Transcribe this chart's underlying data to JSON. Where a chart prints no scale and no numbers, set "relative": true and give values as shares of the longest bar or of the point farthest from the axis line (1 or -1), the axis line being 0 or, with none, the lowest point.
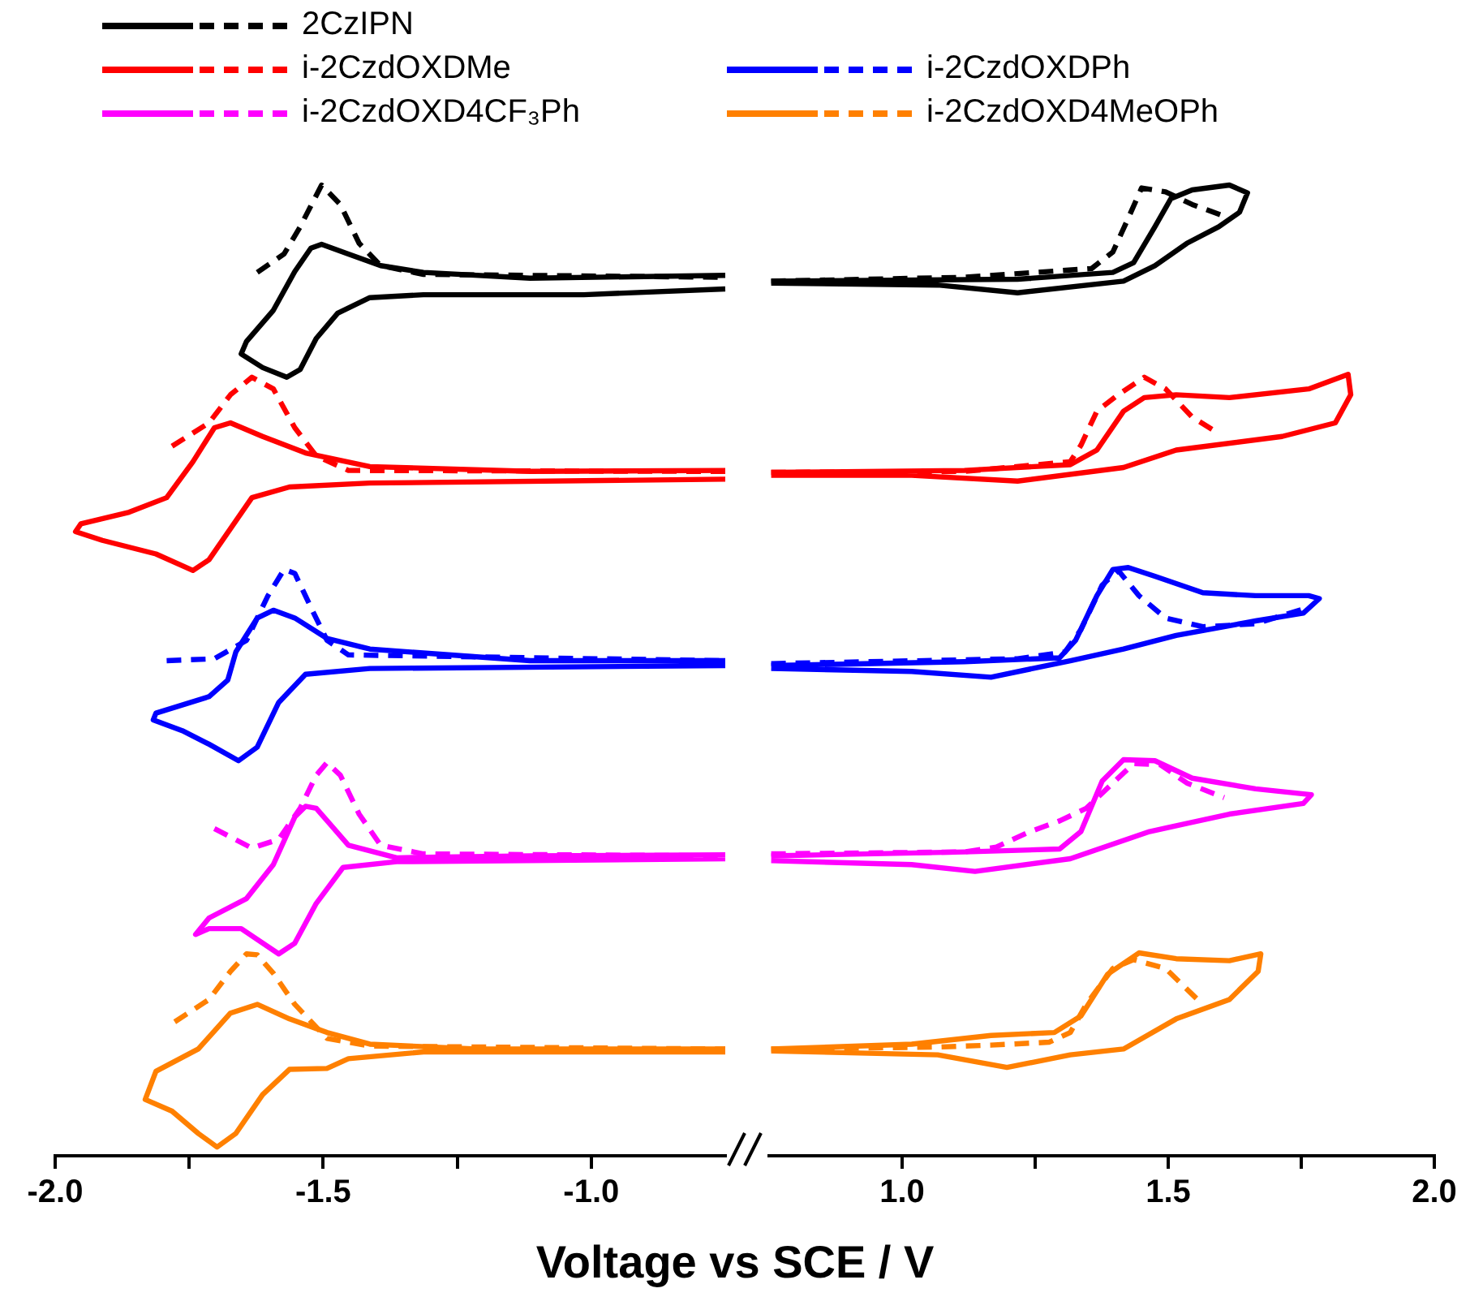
{
  "chart_data": [
    {
      "type": "line",
      "relative": true,
      "marker": "none",
      "legend": "top",
      "tick_labels": "x",
      "xlabel": "Voltage vs SCE / V",
      "xlim": [
        -2.0,
        -0.75
      ],
      "xticks": [
        {
          "value": -2,
          "label": "-2.0"
        },
        {
          "value": -1.75,
          "label": null
        },
        {
          "value": -1.5,
          "label": "-1.5"
        },
        {
          "value": -1.25,
          "label": null
        },
        {
          "value": -1,
          "label": "-1.0"
        }
      ],
      "series": [
        {
          "color": "#000000",
          "line_style": "solid",
          "x": [
            -0.75,
            -1.114,
            -1.313,
            -1.393,
            -1.453,
            -1.503,
            -1.523,
            -1.553,
            -1.593,
            -1.643,
            -1.653,
            -1.613,
            -1.568,
            -1.543,
            -1.513,
            -1.473,
            -1.413,
            -1.313,
            -1.014,
            -0.75
          ],
          "values": [
            0.907,
            0.904,
            0.91,
            0.917,
            0.929,
            0.939,
            0.935,
            0.911,
            0.871,
            0.839,
            0.826,
            0.812,
            0.802,
            0.81,
            0.842,
            0.868,
            0.884,
            0.887,
            0.887,
            0.893
          ]
        },
        {
          "name": "2CzIPN",
          "color": "#000000",
          "line_style": "dashed",
          "x": [
            -1.623,
            -1.573,
            -1.543,
            -1.503,
            -1.468,
            -1.433,
            -1.393,
            -1.313,
            -0.75
          ],
          "values": [
            0.91,
            0.929,
            0.957,
            1.0,
            0.98,
            0.94,
            0.917,
            0.908,
            0.905
          ]
        },
        {
          "color": "#ff0000",
          "line_style": "solid",
          "x": [
            -0.75,
            -1.114,
            -1.413,
            -1.533,
            -1.613,
            -1.673,
            -1.703,
            -1.743,
            -1.792,
            -1.862,
            -1.952,
            -1.962,
            -1.912,
            -1.812,
            -1.743,
            -1.713,
            -1.673,
            -1.633,
            -1.563,
            -1.413,
            -0.75
          ],
          "values": [
            0.706,
            0.705,
            0.71,
            0.724,
            0.741,
            0.755,
            0.75,
            0.715,
            0.678,
            0.663,
            0.651,
            0.643,
            0.634,
            0.62,
            0.603,
            0.614,
            0.646,
            0.678,
            0.689,
            0.693,
            0.697
          ]
        },
        {
          "name": "i-2CzdOXDMe",
          "color": "#ff0000",
          "line_style": "dashed",
          "x": [
            -1.782,
            -1.713,
            -1.673,
            -1.633,
            -1.593,
            -1.553,
            -1.513,
            -1.453,
            -0.75
          ],
          "values": [
            0.731,
            0.755,
            0.784,
            0.802,
            0.79,
            0.75,
            0.721,
            0.706,
            0.705
          ]
        },
        {
          "color": "#0000ff",
          "line_style": "solid",
          "x": [
            -0.75,
            -1.114,
            -1.413,
            -1.493,
            -1.553,
            -1.593,
            -1.623,
            -1.663,
            -1.678,
            -1.713,
            -1.812,
            -1.817,
            -1.763,
            -1.713,
            -1.658,
            -1.623,
            -1.583,
            -1.533,
            -1.413,
            -0.75
          ],
          "values": [
            0.51,
            0.51,
            0.522,
            0.533,
            0.554,
            0.562,
            0.554,
            0.519,
            0.49,
            0.473,
            0.456,
            0.449,
            0.438,
            0.424,
            0.407,
            0.421,
            0.467,
            0.496,
            0.502,
            0.505
          ]
        },
        {
          "name": "i-2CzdOXDPh",
          "color": "#0000ff",
          "line_style": "dashed",
          "x": [
            -1.792,
            -1.703,
            -1.643,
            -1.603,
            -1.573,
            -1.553,
            -1.523,
            -1.493,
            -1.453,
            -0.75
          ],
          "values": [
            0.51,
            0.512,
            0.531,
            0.577,
            0.604,
            0.6,
            0.565,
            0.531,
            0.516,
            0.51
          ]
        },
        {
          "color": "#ff00ff",
          "line_style": "solid",
          "x": [
            -0.75,
            -1.114,
            -1.363,
            -1.453,
            -1.513,
            -1.533,
            -1.553,
            -1.593,
            -1.643,
            -1.713,
            -1.738,
            -1.713,
            -1.653,
            -1.583,
            -1.553,
            -1.513,
            -1.463,
            -1.363,
            -0.75
          ],
          "values": [
            0.31,
            0.309,
            0.307,
            0.32,
            0.358,
            0.36,
            0.349,
            0.3,
            0.265,
            0.245,
            0.228,
            0.234,
            0.234,
            0.208,
            0.219,
            0.26,
            0.297,
            0.303,
            0.306
          ]
        },
        {
          "name": "i-2CzdOXD4CF₃Ph",
          "color": "#ff00ff",
          "line_style": "dashed",
          "x": [
            -1.703,
            -1.633,
            -1.583,
            -1.543,
            -1.513,
            -1.493,
            -1.468,
            -1.433,
            -1.393,
            -1.313,
            -0.75
          ],
          "values": [
            0.337,
            0.317,
            0.326,
            0.358,
            0.392,
            0.405,
            0.392,
            0.352,
            0.32,
            0.311,
            0.309
          ]
        },
        {
          "color": "#ff8000",
          "line_style": "solid",
          "x": [
            -0.75,
            -1.214,
            -1.413,
            -1.493,
            -1.563,
            -1.623,
            -1.673,
            -1.733,
            -1.812,
            -1.832,
            -1.782,
            -1.733,
            -1.698,
            -1.663,
            -1.613,
            -1.563,
            -1.493,
            -1.453,
            -1.313,
            -0.75
          ],
          "values": [
            0.11,
            0.11,
            0.115,
            0.127,
            0.141,
            0.156,
            0.147,
            0.11,
            0.087,
            0.058,
            0.046,
            0.023,
            0.009,
            0.023,
            0.063,
            0.089,
            0.09,
            0.1,
            0.107,
            0.107
          ]
        },
        {
          "name": "i-2CzdOXD4MeOPh",
          "color": "#ff8000",
          "line_style": "dashed",
          "x": [
            -1.777,
            -1.713,
            -1.673,
            -1.643,
            -1.623,
            -1.593,
            -1.553,
            -1.493,
            -1.413,
            -0.75
          ],
          "values": [
            0.138,
            0.161,
            0.19,
            0.208,
            0.207,
            0.188,
            0.156,
            0.121,
            0.113,
            0.11
          ]
        }
      ]
    },
    {
      "type": "line",
      "relative": true,
      "marker": "none",
      "tick_labels": "x",
      "xlim": [
        0.75,
        2.0
      ],
      "xticks": [
        {
          "value": 1,
          "label": "1.0"
        },
        {
          "value": 1.25,
          "label": null
        },
        {
          "value": 1.5,
          "label": "1.5"
        },
        {
          "value": 1.75,
          "label": null
        },
        {
          "value": 2,
          "label": "2.0"
        }
      ],
      "series": [
        {
          "color": "#000000",
          "line_style": "solid",
          "x": [
            0.754,
            1.217,
            1.396,
            1.435,
            1.475,
            1.505,
            1.545,
            1.615,
            1.649,
            1.634,
            1.595,
            1.535,
            1.475,
            1.416,
            1.217,
            1.067,
            0.754
          ],
          "values": [
            0.901,
            0.903,
            0.91,
            0.92,
            0.957,
            0.986,
            0.995,
            1.0,
            0.992,
            0.972,
            0.957,
            0.94,
            0.917,
            0.901,
            0.889,
            0.897,
            0.899
          ]
        },
        {
          "color": "#000000",
          "line_style": "dashed",
          "x": [
            0.754,
            1.117,
            1.356,
            1.396,
            1.425,
            1.45,
            1.495,
            1.545,
            1.615
          ],
          "values": [
            0.901,
            0.905,
            0.914,
            0.931,
            0.966,
            0.997,
            0.993,
            0.98,
            0.966
          ]
        },
        {
          "color": "#ff0000",
          "line_style": "solid",
          "x": [
            0.754,
            1.117,
            1.316,
            1.366,
            1.416,
            1.455,
            1.515,
            1.615,
            1.764,
            1.838,
            1.843,
            1.814,
            1.714,
            1.515,
            1.416,
            1.217,
            1.018,
            0.754
          ],
          "values": [
            0.704,
            0.706,
            0.712,
            0.727,
            0.767,
            0.781,
            0.784,
            0.781,
            0.79,
            0.805,
            0.784,
            0.755,
            0.741,
            0.727,
            0.709,
            0.695,
            0.701,
            0.701
          ]
        },
        {
          "color": "#ff0000",
          "line_style": "dashed",
          "x": [
            0.754,
            1.117,
            1.316,
            1.336,
            1.366,
            1.406,
            1.455,
            1.495,
            1.545,
            1.595
          ],
          "values": [
            0.704,
            0.705,
            0.715,
            0.732,
            0.767,
            0.784,
            0.802,
            0.79,
            0.761,
            0.744
          ]
        },
        {
          "color": "#0000ff",
          "line_style": "solid",
          "x": [
            0.754,
            1.117,
            1.296,
            1.326,
            1.366,
            1.396,
            1.425,
            1.475,
            1.565,
            1.664,
            1.764,
            1.784,
            1.754,
            1.664,
            1.515,
            1.416,
            1.316,
            1.167,
            1.018,
            0.754
          ],
          "values": [
            0.505,
            0.509,
            0.513,
            0.531,
            0.577,
            0.604,
            0.606,
            0.597,
            0.58,
            0.577,
            0.577,
            0.574,
            0.559,
            0.551,
            0.536,
            0.522,
            0.51,
            0.493,
            0.499,
            0.502
          ]
        },
        {
          "color": "#0000ff",
          "line_style": "dashed",
          "x": [
            0.754,
            1.217,
            1.306,
            1.336,
            1.376,
            1.406,
            1.445,
            1.495,
            1.565,
            1.664,
            1.764
          ],
          "values": [
            0.507,
            0.512,
            0.519,
            0.542,
            0.588,
            0.603,
            0.577,
            0.554,
            0.545,
            0.548,
            0.565
          ]
        },
        {
          "color": "#ff00ff",
          "line_style": "solid",
          "x": [
            0.754,
            1.117,
            1.296,
            1.336,
            1.376,
            1.416,
            1.475,
            1.545,
            1.664,
            1.769,
            1.754,
            1.615,
            1.465,
            1.316,
            1.137,
            1.018,
            0.754
          ],
          "values": [
            0.309,
            0.313,
            0.316,
            0.334,
            0.386,
            0.408,
            0.407,
            0.389,
            0.378,
            0.372,
            0.363,
            0.352,
            0.334,
            0.306,
            0.293,
            0.3,
            0.304
          ]
        },
        {
          "color": "#ff00ff",
          "line_style": "dashed",
          "x": [
            0.754,
            1.117,
            1.177,
            1.236,
            1.296,
            1.346,
            1.396,
            1.435,
            1.485,
            1.535,
            1.605
          ],
          "values": [
            0.311,
            0.313,
            0.318,
            0.333,
            0.345,
            0.358,
            0.384,
            0.404,
            0.403,
            0.384,
            0.369
          ]
        },
        {
          "color": "#ff8000",
          "line_style": "solid",
          "x": [
            0.754,
            1.018,
            1.167,
            1.286,
            1.336,
            1.386,
            1.445,
            1.515,
            1.615,
            1.674,
            1.669,
            1.615,
            1.515,
            1.416,
            1.316,
            1.197,
            1.067,
            0.754
          ],
          "values": [
            0.11,
            0.115,
            0.124,
            0.127,
            0.144,
            0.187,
            0.209,
            0.203,
            0.201,
            0.208,
            0.19,
            0.161,
            0.141,
            0.11,
            0.104,
            0.091,
            0.104,
            0.108
          ]
        },
        {
          "color": "#ff8000",
          "line_style": "dashed",
          "x": [
            0.754,
            1.067,
            1.167,
            1.276,
            1.316,
            1.346,
            1.396,
            1.435,
            1.495,
            1.555
          ],
          "values": [
            0.11,
            0.112,
            0.114,
            0.117,
            0.127,
            0.156,
            0.193,
            0.202,
            0.193,
            0.161
          ]
        }
      ]
    }
  ]
}
